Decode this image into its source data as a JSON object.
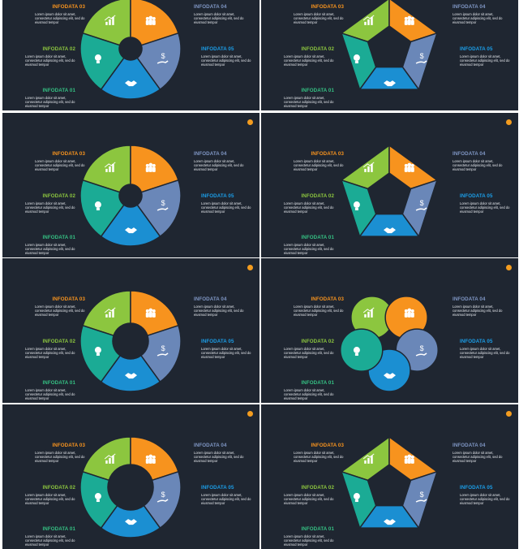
{
  "colors": {
    "background": "#1f2631",
    "green_light": "#8cc63f",
    "orange": "#f7931e",
    "slate": "#6a87b8",
    "blue": "#1b8fd2",
    "teal": "#1bab95",
    "dot": "#f39c1f"
  },
  "labels": {
    "infodata_01": "INFODATA 01",
    "infodata_02": "INFODATA 02",
    "infodata_03": "INFODATA 03",
    "infodata_04": "INFODATA 04",
    "infodata_05": "INFODATA 05",
    "description": "Lorem ipsum dolor sit amet, consectetur adipiscing elit, sed do eiusmod tempor"
  },
  "slides": [
    {
      "variant": "swirl-donut-hands",
      "show_dot": false
    },
    {
      "variant": "pentagon-segments",
      "show_dot": false
    },
    {
      "variant": "swirl-circle",
      "show_dot": true
    },
    {
      "variant": "pentagon-circle",
      "show_dot": true
    },
    {
      "variant": "donut-five",
      "show_dot": true
    },
    {
      "variant": "heart-flower",
      "show_dot": true
    },
    {
      "variant": "ring-overlap",
      "show_dot": true
    },
    {
      "variant": "pentagon-swirl",
      "show_dot": true
    }
  ],
  "icons": [
    "chart-icon",
    "people-icon",
    "money-hand-icon",
    "handshake-icon",
    "lightbulb-icon"
  ]
}
